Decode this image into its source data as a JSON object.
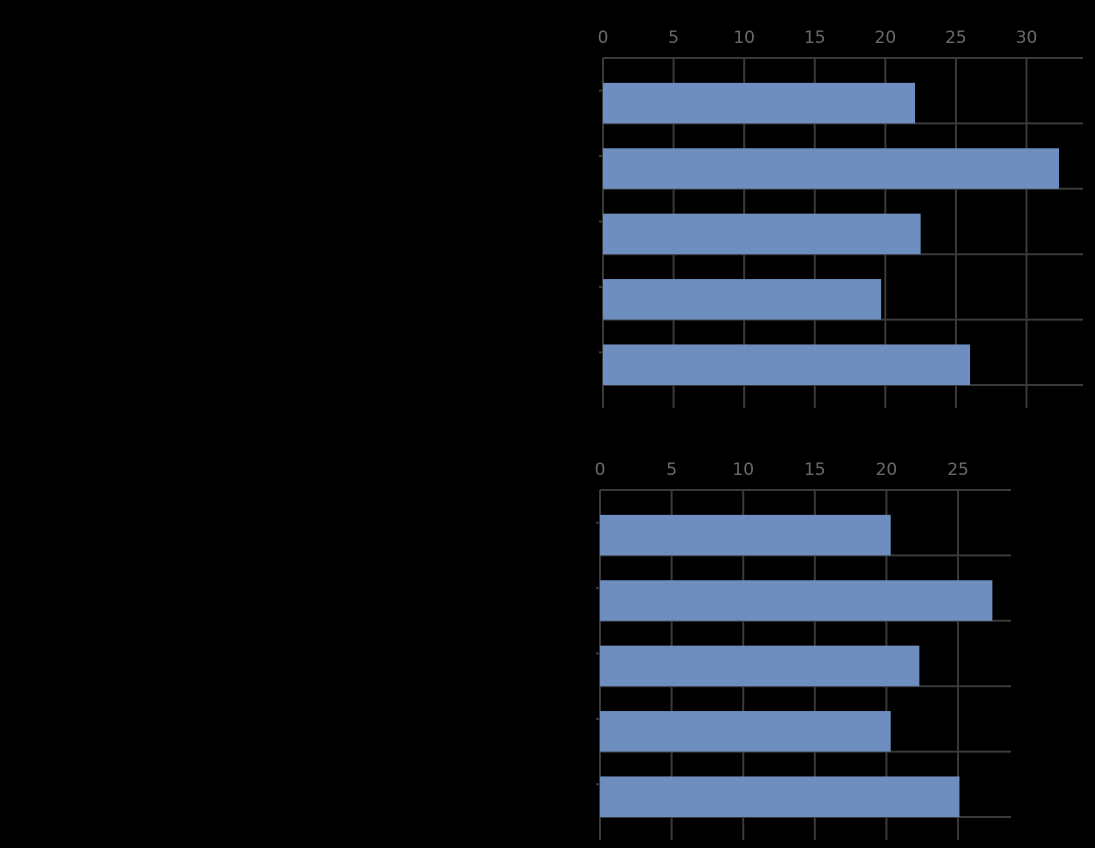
{
  "chart_data": [
    {
      "type": "bar",
      "orientation": "horizontal",
      "color": "#6d8ebf",
      "categories": [
        null,
        null,
        null,
        null,
        null
      ],
      "values": [
        22.1,
        32.3,
        22.5,
        19.7,
        26.0
      ],
      "xlim": [
        0,
        34
      ],
      "xticks": [
        0,
        5,
        10,
        15,
        20,
        25,
        30
      ],
      "grid": true
    },
    {
      "type": "bar",
      "orientation": "horizontal",
      "color": "#6d8ebf",
      "categories": [
        null,
        null,
        null,
        null,
        null
      ],
      "values": [
        20.3,
        27.4,
        22.3,
        20.3,
        25.1
      ],
      "xlim": [
        0,
        28.7
      ],
      "xticks": [
        0,
        5,
        10,
        15,
        20,
        25
      ],
      "grid": true
    }
  ]
}
